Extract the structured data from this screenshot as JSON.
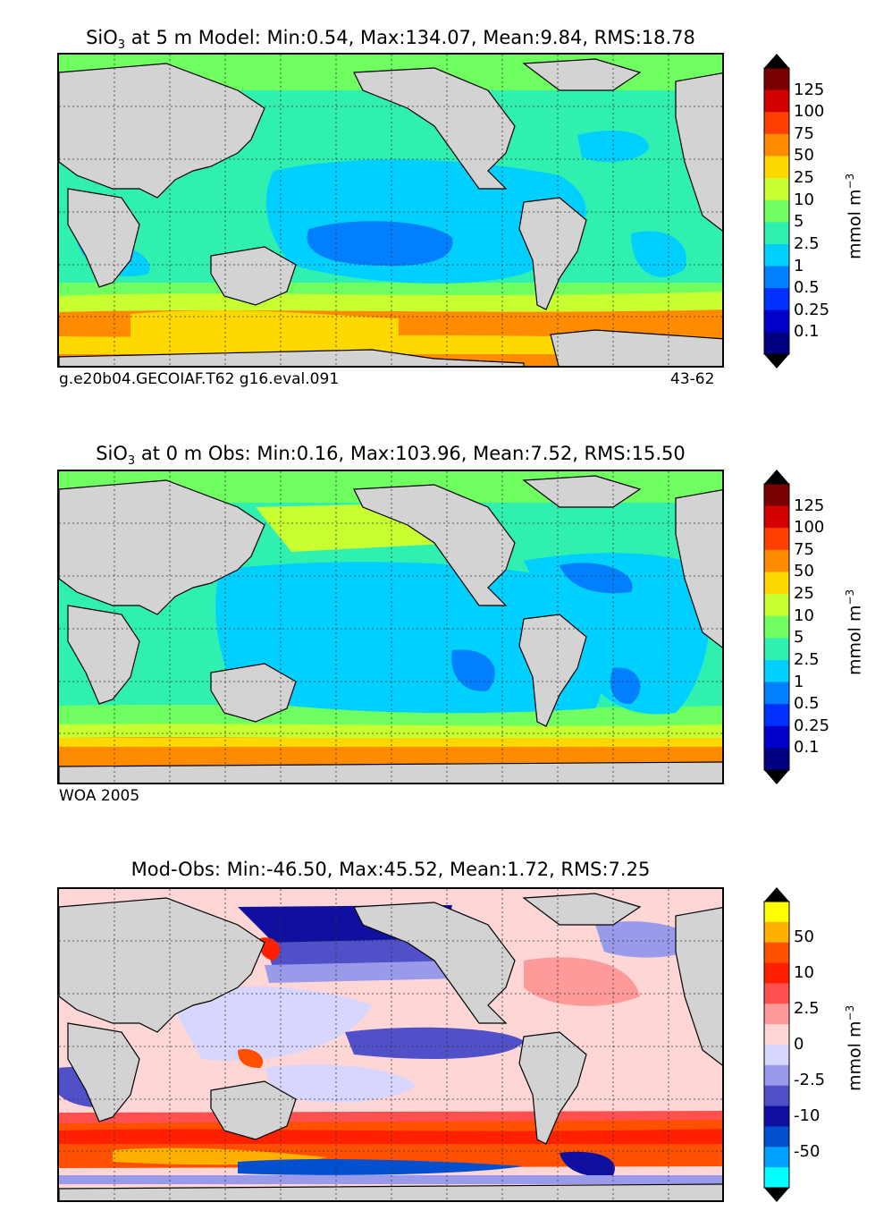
{
  "panels": [
    {
      "title_prefix": "SiO",
      "title_sub": "3",
      "title_rest": " at 5 m Model: Min:0.54, Max:134.07, Mean:9.84, RMS:18.78",
      "note_left": "g.e20b04.GECOIAF.T62 g16.eval.091",
      "note_right": "43-62",
      "unit": "mmol m",
      "unit_exp": "−3",
      "colorbar": {
        "ticks": [
          "125",
          "100",
          "75",
          "50",
          "25",
          "10",
          "5",
          "2.5",
          "1",
          "0.5",
          "0.25",
          "0.1"
        ],
        "colors": [
          "#7a0000",
          "#d40000",
          "#ff4000",
          "#ff8c00",
          "#ffd800",
          "#c8ff30",
          "#70ff60",
          "#30f0b0",
          "#00d0ff",
          "#0080ff",
          "#0030ff",
          "#0000c8",
          "#000080"
        ],
        "over": "#000000",
        "under": "#000000"
      }
    },
    {
      "title_prefix": "SiO",
      "title_sub": "3",
      "title_rest": " at 0 m Obs: Min:0.16, Max:103.96, Mean:7.52, RMS:15.50",
      "note_left": "WOA 2005",
      "note_right": "",
      "unit": "mmol m",
      "unit_exp": "−3",
      "colorbar": {
        "ticks": [
          "125",
          "100",
          "75",
          "50",
          "25",
          "10",
          "5",
          "2.5",
          "1",
          "0.5",
          "0.25",
          "0.1"
        ],
        "colors": [
          "#7a0000",
          "#d40000",
          "#ff4000",
          "#ff8c00",
          "#ffd800",
          "#c8ff30",
          "#70ff60",
          "#30f0b0",
          "#00d0ff",
          "#0080ff",
          "#0030ff",
          "#0000c8",
          "#000080"
        ],
        "over": "#000000",
        "under": "#000000"
      }
    },
    {
      "title_prefix": "",
      "title_sub": "",
      "title_rest": "Mod-Obs: Min:-46.50, Max:45.52, Mean:1.72, RMS:7.25",
      "note_left": "",
      "note_right": "",
      "unit": "mmol m",
      "unit_exp": "−3",
      "colorbar": {
        "ticks": [
          "50",
          "10",
          "2.5",
          "0",
          "-2.5",
          "-10",
          "-50"
        ],
        "colors": [
          "#ffff00",
          "#ffb000",
          "#ff5000",
          "#ff2000",
          "#ff5050",
          "#ff9a9a",
          "#ffd6d6",
          "#d6d6ff",
          "#9a9aea",
          "#5050c8",
          "#1010a0",
          "#0050d0",
          "#00a0ff",
          "#00ffff"
        ],
        "over": "#000000",
        "under": "#000000"
      }
    }
  ]
}
